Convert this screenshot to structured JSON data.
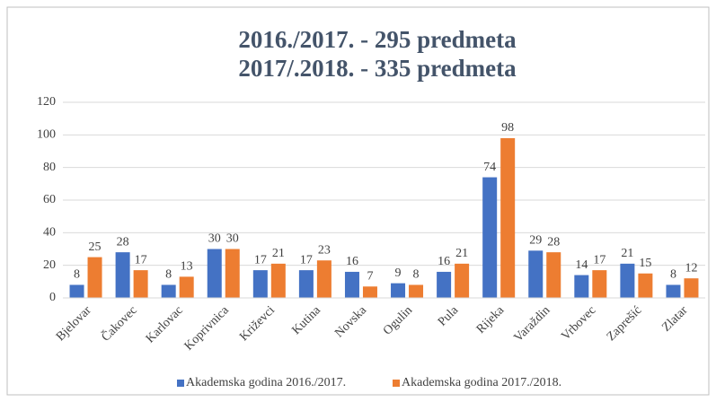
{
  "chart_data": {
    "type": "bar",
    "title": [
      "2016./2017. - 295 predmeta",
      "2017/.2018. - 335 predmeta"
    ],
    "categories": [
      "Bjelovar",
      "Čakovec",
      "Karlovac",
      "Koprivnica",
      "Križevci",
      "Kutina",
      "Novska",
      "Ogulin",
      "Pula",
      "Rijeka",
      "Varaždin",
      "Vrbovec",
      "Zaprešić",
      "Zlatar"
    ],
    "series": [
      {
        "name": "Akademska godina 2016./2017.",
        "color": "#4472c4",
        "values": [
          8,
          28,
          8,
          30,
          17,
          17,
          16,
          9,
          16,
          74,
          29,
          14,
          21,
          8
        ]
      },
      {
        "name": "Akademska godina 2017./2018.",
        "color": "#ed7d31",
        "values": [
          25,
          17,
          13,
          30,
          21,
          23,
          7,
          8,
          21,
          98,
          28,
          17,
          15,
          12
        ]
      }
    ],
    "ylim": [
      0,
      120
    ],
    "yticks": [
      0,
      20,
      40,
      60,
      80,
      100,
      120
    ],
    "grid": true,
    "legend": "bottom"
  }
}
